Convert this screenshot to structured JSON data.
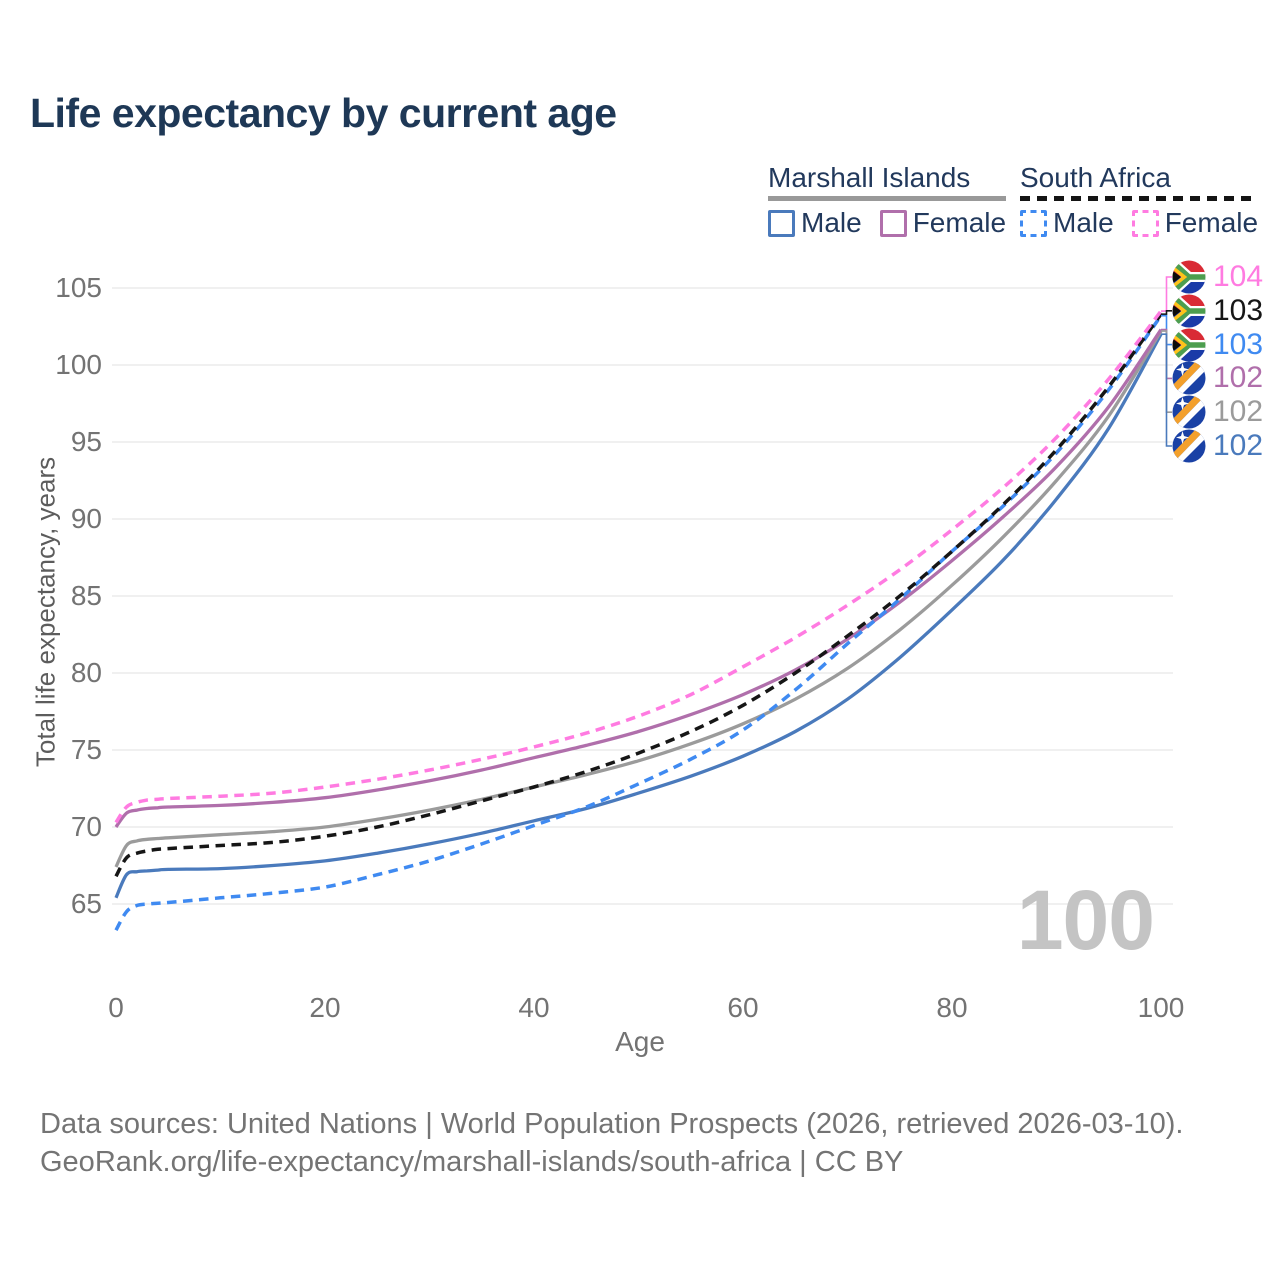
{
  "title": "Life expectancy by current age",
  "colors": {
    "mi_male": "#4a7abc",
    "mi_female": "#b06fab",
    "mi_total": "#9b9b9b",
    "sa_male": "#3f8af1",
    "sa_female": "#ff7be1",
    "sa_total": "#161616",
    "grid": "#e7e7e7",
    "axis_text": "#737373",
    "title_text": "#1e3856",
    "watermark": "#c4c4c4",
    "footer_text": "#747474"
  },
  "legend": {
    "marshall_islands": {
      "title": "Marshall Islands",
      "male_label": "Male",
      "female_label": "Female"
    },
    "south_africa": {
      "title": "South Africa",
      "male_label": "Male",
      "female_label": "Female"
    }
  },
  "axes": {
    "y_title": "Total life expectancy, years",
    "y_ticks": [
      65,
      70,
      75,
      80,
      85,
      90,
      95,
      100,
      105
    ],
    "x_title": "Age",
    "x_ticks": [
      0,
      20,
      40,
      60,
      80,
      100
    ]
  },
  "watermark": "100",
  "footer": {
    "line1": "Data sources: United Nations | World Population Prospects (2026, retrieved 2026-03-10).",
    "line2": "GeoRank.org/life-expectancy/marshall-islands/south-africa | CC BY"
  },
  "chart_data": {
    "type": "line",
    "title": "Life expectancy by current age",
    "xlabel": "Age",
    "ylabel": "Total life expectancy, years",
    "xlim": [
      0,
      100
    ],
    "ylim": [
      62,
      106
    ],
    "grid": "horizontal",
    "legend_position": "top-right",
    "ages": [
      0,
      1,
      2,
      3,
      4,
      5,
      10,
      15,
      20,
      25,
      30,
      35,
      40,
      45,
      50,
      55,
      60,
      65,
      70,
      75,
      80,
      85,
      90,
      95,
      100
    ],
    "series": [
      {
        "id": "sa_female",
        "country": "South Africa",
        "sex": "female",
        "label": "Female",
        "dash": true,
        "flag": "south-africa",
        "end_label": "104",
        "values": [
          70.3,
          71.3,
          71.6,
          71.75,
          71.8,
          71.85,
          72.0,
          72.2,
          72.6,
          73.1,
          73.7,
          74.4,
          75.2,
          76.1,
          77.2,
          78.6,
          80.4,
          82.3,
          84.4,
          86.7,
          89.3,
          92.1,
          95.3,
          99.1,
          103.5
        ]
      },
      {
        "id": "sa_total",
        "country": "South Africa",
        "sex": "all",
        "label": "South Africa",
        "dash": true,
        "flag": "south-africa",
        "end_label": "103",
        "values": [
          66.8,
          68.0,
          68.3,
          68.45,
          68.55,
          68.6,
          68.8,
          69.0,
          69.4,
          70.0,
          70.8,
          71.7,
          72.6,
          73.6,
          74.8,
          76.2,
          77.9,
          80.0,
          82.4,
          85.0,
          87.9,
          91.0,
          94.5,
          98.6,
          103.3
        ]
      },
      {
        "id": "sa_male",
        "country": "South Africa",
        "sex": "male",
        "label": "Male",
        "dash": true,
        "flag": "south-africa",
        "end_label": "103",
        "values": [
          63.3,
          64.5,
          64.9,
          65.0,
          65.05,
          65.1,
          65.4,
          65.7,
          66.1,
          66.9,
          67.8,
          68.9,
          70.1,
          71.3,
          72.8,
          74.4,
          76.3,
          78.9,
          81.9,
          84.8,
          87.9,
          90.9,
          94.3,
          98.4,
          103.2
        ]
      },
      {
        "id": "mi_female",
        "country": "Marshall Islands",
        "sex": "female",
        "label": "Female",
        "dash": false,
        "flag": "marshall-islands",
        "end_label": "102",
        "values": [
          70.0,
          70.9,
          71.1,
          71.2,
          71.25,
          71.3,
          71.4,
          71.6,
          71.9,
          72.4,
          73.0,
          73.7,
          74.5,
          75.3,
          76.2,
          77.3,
          78.6,
          80.2,
          82.2,
          84.6,
          87.3,
          90.2,
          93.4,
          97.3,
          102.3
        ]
      },
      {
        "id": "mi_total",
        "country": "Marshall Islands",
        "sex": "all",
        "label": "Marshall Islands",
        "dash": false,
        "flag": "marshall-islands",
        "end_label": "102",
        "values": [
          67.4,
          68.8,
          69.1,
          69.2,
          69.25,
          69.3,
          69.5,
          69.7,
          70.0,
          70.5,
          71.1,
          71.8,
          72.6,
          73.4,
          74.3,
          75.4,
          76.7,
          78.3,
          80.3,
          82.8,
          85.7,
          88.9,
          92.5,
          96.7,
          102.2
        ]
      },
      {
        "id": "mi_male",
        "country": "Marshall Islands",
        "sex": "male",
        "label": "Male",
        "dash": false,
        "flag": "marshall-islands",
        "end_label": "102",
        "values": [
          65.4,
          66.9,
          67.1,
          67.15,
          67.2,
          67.25,
          67.3,
          67.5,
          67.8,
          68.3,
          68.9,
          69.6,
          70.4,
          71.2,
          72.2,
          73.3,
          74.6,
          76.2,
          78.3,
          81.0,
          84.1,
          87.4,
          91.3,
          95.9,
          102.0
        ]
      }
    ]
  }
}
